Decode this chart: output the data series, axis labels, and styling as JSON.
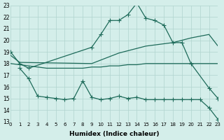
{
  "xlabel": "Humidex (Indice chaleur)",
  "xlim": [
    0,
    23
  ],
  "ylim": [
    13,
    23
  ],
  "xticks": [
    0,
    1,
    2,
    3,
    4,
    5,
    6,
    7,
    8,
    9,
    10,
    11,
    12,
    13,
    14,
    15,
    16,
    17,
    18,
    19,
    20,
    21,
    22,
    23
  ],
  "yticks": [
    13,
    14,
    15,
    16,
    17,
    18,
    19,
    20,
    21,
    22,
    23
  ],
  "bg_color": "#d4eeea",
  "line_color": "#1e6b5a",
  "line1_x": [
    0,
    1,
    2,
    9,
    10,
    11,
    12,
    13,
    14,
    15,
    16,
    17,
    18,
    19,
    20,
    22,
    23
  ],
  "line1_y": [
    19.0,
    18.0,
    17.6,
    19.4,
    20.5,
    21.7,
    21.7,
    22.2,
    23.2,
    21.9,
    21.7,
    21.3,
    19.8,
    19.8,
    18.0,
    15.9,
    15.0
  ],
  "line2_x": [
    0,
    1,
    9,
    10,
    11,
    12,
    13,
    14,
    15,
    16,
    17,
    18,
    19,
    20,
    22,
    23
  ],
  "line2_y": [
    18.7,
    18.1,
    18.0,
    18.3,
    18.6,
    18.9,
    19.1,
    19.3,
    19.5,
    19.6,
    19.7,
    19.8,
    20.0,
    20.2,
    20.5,
    19.5
  ],
  "line3_x": [
    0,
    1,
    2,
    3,
    4,
    5,
    6,
    7,
    8,
    9,
    10,
    11,
    12,
    13,
    14,
    15,
    16,
    17,
    18,
    19,
    20,
    21,
    22,
    23
  ],
  "line3_y": [
    18.0,
    17.9,
    17.8,
    17.7,
    17.6,
    17.6,
    17.6,
    17.6,
    17.6,
    17.7,
    17.7,
    17.8,
    17.8,
    17.9,
    17.9,
    18.0,
    18.0,
    18.0,
    18.0,
    18.0,
    18.0,
    18.0,
    18.0,
    18.0
  ],
  "line4_x": [
    1,
    2,
    3,
    4,
    5,
    6,
    7,
    8,
    9,
    10,
    11,
    12,
    13,
    14,
    15,
    16,
    17,
    18,
    19,
    20,
    21,
    22,
    23
  ],
  "line4_y": [
    17.6,
    16.7,
    15.2,
    15.1,
    15.0,
    14.9,
    15.0,
    16.5,
    15.1,
    14.9,
    15.0,
    15.2,
    15.0,
    15.1,
    14.9,
    14.9,
    14.9,
    14.9,
    14.9,
    14.9,
    14.9,
    14.2,
    13.2
  ]
}
